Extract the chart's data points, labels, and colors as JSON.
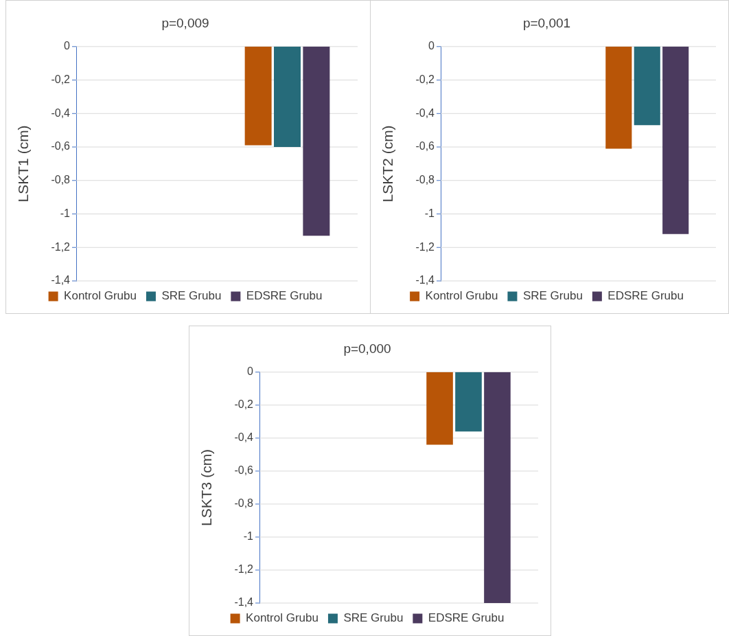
{
  "chart_data": [
    {
      "type": "bar",
      "title": "p=0,009",
      "ylabel": "LSKT1 (cm)",
      "categories": [
        null,
        null
      ],
      "series": [
        {
          "name": "Kontrol Grubu",
          "color": "#b85507",
          "values": [
            null,
            -0.59
          ]
        },
        {
          "name": "SRE Grubu",
          "color": "#266b7a",
          "values": [
            null,
            -0.6
          ]
        },
        {
          "name": "EDSRE Grubu",
          "color": "#4b3a5e",
          "values": [
            null,
            -1.13
          ]
        }
      ],
      "ylim": [
        -1.4,
        0
      ],
      "yticks": [
        {
          "value": 0,
          "label": "0"
        },
        {
          "value": -0.2,
          "label": "-0,2"
        },
        {
          "value": -0.4,
          "label": "-0,4"
        },
        {
          "value": -0.6,
          "label": "-0,6"
        },
        {
          "value": -0.8,
          "label": "-0,8"
        },
        {
          "value": -1,
          "label": "-1"
        },
        {
          "value": -1.2,
          "label": "-1,2"
        },
        {
          "value": -1.4,
          "label": "-1,4"
        }
      ],
      "grid": "y",
      "legend": "bottom",
      "tick_labels": "y"
    },
    {
      "type": "bar",
      "title": "p=0,001",
      "ylabel": "LSKT2 (cm)",
      "categories": [
        null,
        null
      ],
      "series": [
        {
          "name": "Kontrol Grubu",
          "color": "#b85507",
          "values": [
            null,
            -0.61
          ]
        },
        {
          "name": "SRE Grubu",
          "color": "#266b7a",
          "values": [
            null,
            -0.47
          ]
        },
        {
          "name": "EDSRE Grubu",
          "color": "#4b3a5e",
          "values": [
            null,
            -1.12
          ]
        }
      ],
      "ylim": [
        -1.4,
        0
      ],
      "yticks": [
        {
          "value": 0,
          "label": "0"
        },
        {
          "value": -0.2,
          "label": "-0,2"
        },
        {
          "value": -0.4,
          "label": "-0,4"
        },
        {
          "value": -0.6,
          "label": "-0,6"
        },
        {
          "value": -0.8,
          "label": "-0,8"
        },
        {
          "value": -1,
          "label": "-1"
        },
        {
          "value": -1.2,
          "label": "-1,2"
        },
        {
          "value": -1.4,
          "label": "-1,4"
        }
      ],
      "grid": "y",
      "legend": "bottom",
      "tick_labels": "y"
    },
    {
      "type": "bar",
      "title": "p=0,000",
      "ylabel": "LSKT3 (cm)",
      "categories": [
        null,
        null
      ],
      "series": [
        {
          "name": "Kontrol Grubu",
          "color": "#b85507",
          "values": [
            null,
            -0.44
          ]
        },
        {
          "name": "SRE Grubu",
          "color": "#266b7a",
          "values": [
            null,
            -0.36
          ]
        },
        {
          "name": "EDSRE Grubu",
          "color": "#4b3a5e",
          "values": [
            null,
            -1.4
          ]
        }
      ],
      "ylim": [
        -1.4,
        0
      ],
      "yticks": [
        {
          "value": 0,
          "label": "0"
        },
        {
          "value": -0.2,
          "label": "-0,2"
        },
        {
          "value": -0.4,
          "label": "-0,4"
        },
        {
          "value": -0.6,
          "label": "-0,6"
        },
        {
          "value": -0.8,
          "label": "-0,8"
        },
        {
          "value": -1,
          "label": "-1"
        },
        {
          "value": -1.2,
          "label": "-1,2"
        },
        {
          "value": -1.4,
          "label": "-1,4"
        }
      ],
      "grid": "y",
      "legend": "bottom",
      "tick_labels": "y"
    }
  ]
}
